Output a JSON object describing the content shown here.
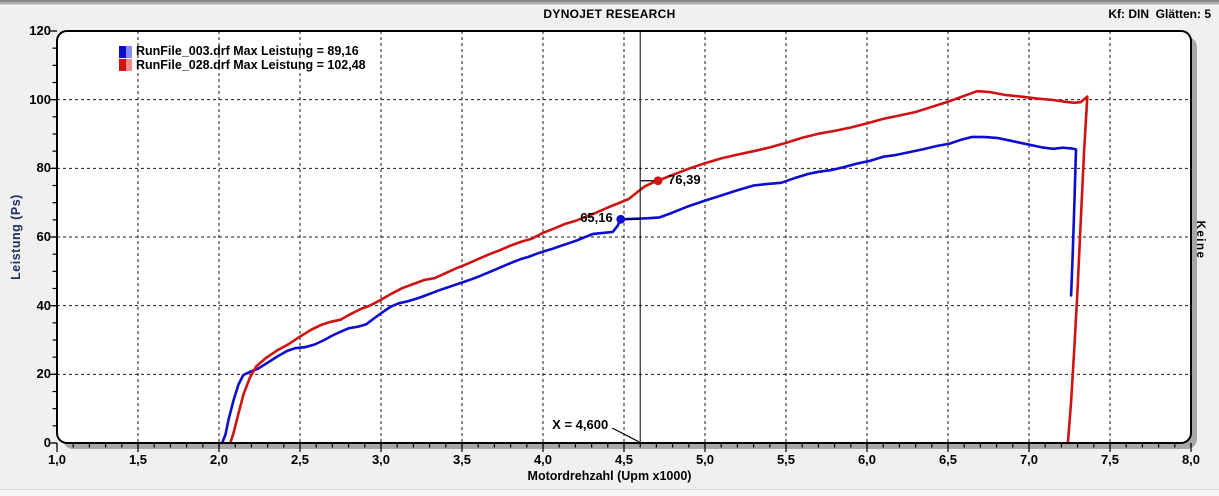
{
  "header": {
    "title": "DYNOJET RESEARCH",
    "kf_label": "Kf: DIN  Glätten: 5"
  },
  "right_label": "Keine",
  "colors": {
    "blue": "#0d0dd0",
    "blue_light": "#8a8af2",
    "red": "#d01212",
    "red_light": "#f28c8c",
    "ylabel_color": "#1c2e63",
    "plot_bg": "#ffffff",
    "page_bg": "#f0f0ee",
    "shadow": "#a7a7a7"
  },
  "chart_data": {
    "type": "line",
    "xlabel": "Motordrehzahl (Upm x1000)",
    "ylabel": "Leistung (Ps)",
    "xlim": [
      1.0,
      8.0
    ],
    "ylim": [
      0,
      120
    ],
    "grid": "dashed",
    "legend_position": "top-left",
    "x_ticks": {
      "values": [
        1.0,
        1.5,
        2.0,
        2.5,
        3.0,
        3.5,
        4.0,
        4.5,
        5.0,
        5.5,
        6.0,
        6.5,
        7.0,
        7.5,
        8.0
      ],
      "labels": [
        "1,0",
        "1,5",
        "2,0",
        "2,5",
        "3,0",
        "3,5",
        "4,0",
        "4,5",
        "5,0",
        "5,5",
        "6,0",
        "6,5",
        "7,0",
        "7,5",
        "8,0"
      ],
      "minor_step": 0.1
    },
    "y_ticks": {
      "values": [
        0,
        20,
        40,
        60,
        80,
        100,
        120
      ],
      "labels": [
        "0",
        "20",
        "40",
        "60",
        "80",
        "100",
        "120"
      ],
      "minor_step": 5
    },
    "legend": [
      {
        "label": "RunFile_003.drf Max Leistung = 89,16"
      },
      {
        "label": "RunFile_028.drf Max Leistung = 102,48"
      }
    ],
    "cursor": {
      "x": 4.6,
      "label": "X = 4,600"
    },
    "markers": [
      {
        "series": 0,
        "x": 4.48,
        "y": 65.16,
        "label": "65,16",
        "label_side": "left"
      },
      {
        "series": 1,
        "x": 4.71,
        "y": 76.39,
        "label": "76,39",
        "label_side": "right"
      }
    ],
    "series": [
      {
        "name": "RunFile_003.drf",
        "max_leistung": 89.16,
        "points": [
          [
            2.02,
            0
          ],
          [
            2.04,
            2.5
          ],
          [
            2.06,
            7
          ],
          [
            2.09,
            12.5
          ],
          [
            2.12,
            17
          ],
          [
            2.15,
            19.8
          ],
          [
            2.19,
            20.7
          ],
          [
            2.24,
            21.6
          ],
          [
            2.3,
            23.4
          ],
          [
            2.36,
            25.2
          ],
          [
            2.42,
            26.8
          ],
          [
            2.47,
            27.6
          ],
          [
            2.53,
            27.9
          ],
          [
            2.59,
            28.7
          ],
          [
            2.65,
            30
          ],
          [
            2.7,
            31.3
          ],
          [
            2.75,
            32.4
          ],
          [
            2.8,
            33.4
          ],
          [
            2.86,
            33.9
          ],
          [
            2.91,
            34.6
          ],
          [
            2.96,
            36.4
          ],
          [
            3.01,
            38.1
          ],
          [
            3.06,
            39.7
          ],
          [
            3.11,
            40.7
          ],
          [
            3.16,
            41.2
          ],
          [
            3.21,
            41.9
          ],
          [
            3.26,
            42.7
          ],
          [
            3.31,
            43.6
          ],
          [
            3.36,
            44.5
          ],
          [
            3.41,
            45.3
          ],
          [
            3.46,
            46.1
          ],
          [
            3.51,
            46.9
          ],
          [
            3.56,
            47.7
          ],
          [
            3.61,
            48.6
          ],
          [
            3.66,
            49.6
          ],
          [
            3.71,
            50.6
          ],
          [
            3.76,
            51.6
          ],
          [
            3.81,
            52.6
          ],
          [
            3.86,
            53.5
          ],
          [
            3.91,
            54.2
          ],
          [
            3.96,
            55.1
          ],
          [
            4.01,
            55.9
          ],
          [
            4.06,
            56.6
          ],
          [
            4.11,
            57.4
          ],
          [
            4.16,
            58.2
          ],
          [
            4.21,
            59
          ],
          [
            4.26,
            60
          ],
          [
            4.31,
            60.9
          ],
          [
            4.37,
            61.2
          ],
          [
            4.43,
            61.5
          ],
          [
            4.46,
            63.2
          ],
          [
            4.48,
            65.16
          ],
          [
            4.56,
            65.3
          ],
          [
            4.64,
            65.45
          ],
          [
            4.72,
            65.7
          ],
          [
            4.8,
            67.1
          ],
          [
            4.9,
            69
          ],
          [
            5.0,
            70.6
          ],
          [
            5.1,
            72.1
          ],
          [
            5.2,
            73.6
          ],
          [
            5.3,
            75
          ],
          [
            5.38,
            75.4
          ],
          [
            5.47,
            75.8
          ],
          [
            5.55,
            77.1
          ],
          [
            5.63,
            78.3
          ],
          [
            5.7,
            79
          ],
          [
            5.78,
            79.5
          ],
          [
            5.86,
            80.4
          ],
          [
            5.94,
            81.4
          ],
          [
            6.02,
            82.2
          ],
          [
            6.1,
            83.4
          ],
          [
            6.18,
            83.9
          ],
          [
            6.27,
            84.8
          ],
          [
            6.35,
            85.6
          ],
          [
            6.43,
            86.5
          ],
          [
            6.51,
            87.2
          ],
          [
            6.58,
            88.3
          ],
          [
            6.65,
            89.16
          ],
          [
            6.73,
            89.1
          ],
          [
            6.81,
            88.8
          ],
          [
            6.9,
            87.9
          ],
          [
            6.99,
            87
          ],
          [
            7.08,
            86.1
          ],
          [
            7.15,
            85.7
          ],
          [
            7.21,
            86
          ],
          [
            7.26,
            85.8
          ],
          [
            7.29,
            85.5
          ],
          [
            7.28,
            70
          ],
          [
            7.27,
            55
          ],
          [
            7.26,
            43
          ]
        ]
      },
      {
        "name": "RunFile_028.drf",
        "max_leistung": 102.48,
        "points": [
          [
            2.07,
            0
          ],
          [
            2.09,
            3
          ],
          [
            2.12,
            8.5
          ],
          [
            2.15,
            14
          ],
          [
            2.19,
            19
          ],
          [
            2.23,
            22.3
          ],
          [
            2.29,
            24.8
          ],
          [
            2.36,
            27
          ],
          [
            2.43,
            28.8
          ],
          [
            2.5,
            31
          ],
          [
            2.57,
            33
          ],
          [
            2.63,
            34.4
          ],
          [
            2.69,
            35.3
          ],
          [
            2.75,
            35.9
          ],
          [
            2.81,
            37.5
          ],
          [
            2.87,
            38.9
          ],
          [
            2.93,
            40
          ],
          [
            3.0,
            41.7
          ],
          [
            3.07,
            43.6
          ],
          [
            3.13,
            45.1
          ],
          [
            3.2,
            46.3
          ],
          [
            3.27,
            47.5
          ],
          [
            3.33,
            48
          ],
          [
            3.4,
            49.5
          ],
          [
            3.47,
            51
          ],
          [
            3.53,
            52.1
          ],
          [
            3.6,
            53.6
          ],
          [
            3.67,
            55
          ],
          [
            3.73,
            56.1
          ],
          [
            3.8,
            57.5
          ],
          [
            3.87,
            58.7
          ],
          [
            3.93,
            59.5
          ],
          [
            4.0,
            61.2
          ],
          [
            4.07,
            62.5
          ],
          [
            4.13,
            63.7
          ],
          [
            4.2,
            64.7
          ],
          [
            4.27,
            66
          ],
          [
            4.33,
            67.1
          ],
          [
            4.4,
            68.6
          ],
          [
            4.47,
            69.9
          ],
          [
            4.53,
            71.1
          ],
          [
            4.58,
            73
          ],
          [
            4.63,
            74.8
          ],
          [
            4.68,
            75.9
          ],
          [
            4.71,
            76.39
          ],
          [
            4.8,
            78.1
          ],
          [
            4.9,
            79.9
          ],
          [
            5.0,
            81.5
          ],
          [
            5.1,
            82.9
          ],
          [
            5.2,
            84
          ],
          [
            5.3,
            85
          ],
          [
            5.4,
            86.1
          ],
          [
            5.5,
            87.4
          ],
          [
            5.6,
            88.9
          ],
          [
            5.7,
            90.1
          ],
          [
            5.8,
            90.9
          ],
          [
            5.9,
            91.9
          ],
          [
            6.0,
            93.1
          ],
          [
            6.1,
            94.4
          ],
          [
            6.2,
            95.4
          ],
          [
            6.3,
            96.4
          ],
          [
            6.4,
            97.9
          ],
          [
            6.5,
            99.4
          ],
          [
            6.6,
            101.1
          ],
          [
            6.68,
            102.48
          ],
          [
            6.76,
            102.2
          ],
          [
            6.85,
            101.4
          ],
          [
            6.95,
            100.9
          ],
          [
            7.05,
            100.3
          ],
          [
            7.15,
            99.9
          ],
          [
            7.22,
            99.4
          ],
          [
            7.28,
            99.1
          ],
          [
            7.32,
            99.3
          ],
          [
            7.36,
            100.9
          ],
          [
            7.34,
            85
          ],
          [
            7.32,
            65
          ],
          [
            7.3,
            45
          ],
          [
            7.28,
            28
          ],
          [
            7.26,
            12
          ],
          [
            7.24,
            0
          ]
        ]
      }
    ]
  }
}
